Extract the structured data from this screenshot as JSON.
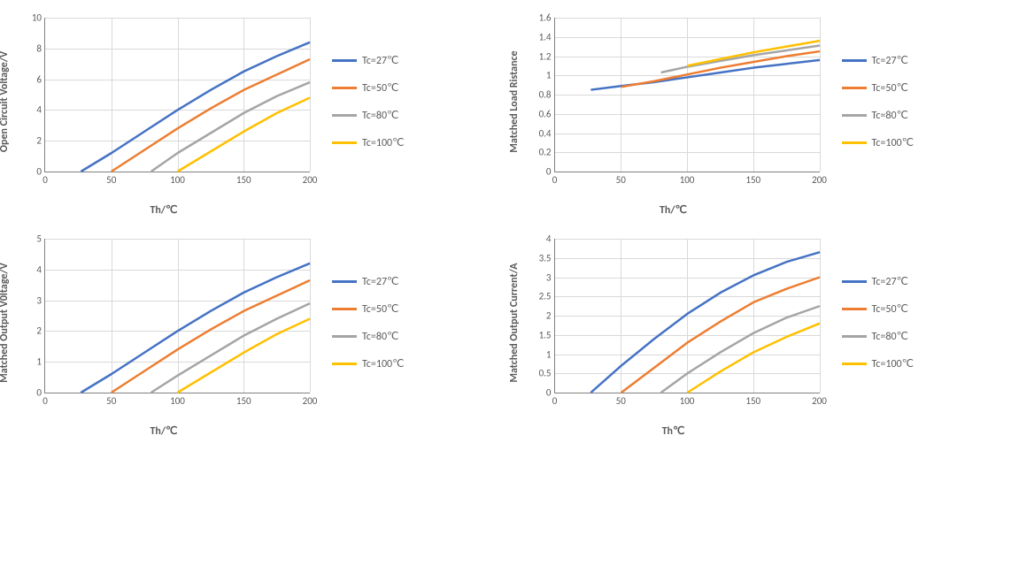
{
  "colors": {
    "series": [
      "#4472c4",
      "#ed7d31",
      "#a5a5a5",
      "#ffc000"
    ],
    "grid": "#d9d9d9",
    "axis": "#808080",
    "text": "#595959",
    "background": "#ffffff"
  },
  "legend_labels": [
    "Tc=27℃",
    "Tc=50℃",
    "Tc=80℃",
    "Tc=100℃"
  ],
  "line_width": 2.5,
  "axis_fontsize": 11,
  "label_fontsize": 12,
  "label_fontweight": "bold",
  "charts": [
    {
      "id": "open-circuit-voltage",
      "ylabel": "Open Circuit Voltage/V",
      "xlabel": "Th/℃",
      "xlim": [
        0,
        200
      ],
      "xtick_step": 50,
      "ylim": [
        0,
        10
      ],
      "ytick_step": 2,
      "series": [
        {
          "color_idx": 0,
          "points": [
            [
              27,
              0
            ],
            [
              50,
              1.2
            ],
            [
              75,
              2.6
            ],
            [
              100,
              4.0
            ],
            [
              125,
              5.3
            ],
            [
              150,
              6.5
            ],
            [
              175,
              7.5
            ],
            [
              200,
              8.4
            ]
          ]
        },
        {
          "color_idx": 1,
          "points": [
            [
              50,
              0
            ],
            [
              75,
              1.4
            ],
            [
              100,
              2.8
            ],
            [
              125,
              4.1
            ],
            [
              150,
              5.3
            ],
            [
              175,
              6.3
            ],
            [
              200,
              7.3
            ]
          ]
        },
        {
          "color_idx": 2,
          "points": [
            [
              80,
              0
            ],
            [
              100,
              1.2
            ],
            [
              125,
              2.5
            ],
            [
              150,
              3.8
            ],
            [
              175,
              4.9
            ],
            [
              200,
              5.8
            ]
          ]
        },
        {
          "color_idx": 3,
          "points": [
            [
              100,
              0
            ],
            [
              125,
              1.3
            ],
            [
              150,
              2.6
            ],
            [
              175,
              3.8
            ],
            [
              200,
              4.8
            ]
          ]
        }
      ]
    },
    {
      "id": "matched-load-resistance",
      "ylabel": "Matched Load Ristance",
      "xlabel": "Th/℃",
      "xlim": [
        0,
        200
      ],
      "xtick_step": 50,
      "ylim": [
        0,
        1.6
      ],
      "ytick_step": 0.2,
      "series": [
        {
          "color_idx": 0,
          "points": [
            [
              27,
              0.85
            ],
            [
              50,
              0.89
            ],
            [
              75,
              0.93
            ],
            [
              100,
              0.98
            ],
            [
              125,
              1.03
            ],
            [
              150,
              1.08
            ],
            [
              175,
              1.12
            ],
            [
              200,
              1.16
            ]
          ]
        },
        {
          "color_idx": 1,
          "points": [
            [
              50,
              0.88
            ],
            [
              75,
              0.94
            ],
            [
              100,
              1.01
            ],
            [
              125,
              1.08
            ],
            [
              150,
              1.14
            ],
            [
              175,
              1.2
            ],
            [
              200,
              1.25
            ]
          ]
        },
        {
          "color_idx": 2,
          "points": [
            [
              80,
              1.03
            ],
            [
              100,
              1.09
            ],
            [
              125,
              1.15
            ],
            [
              150,
              1.21
            ],
            [
              175,
              1.26
            ],
            [
              200,
              1.31
            ]
          ]
        },
        {
          "color_idx": 3,
          "points": [
            [
              100,
              1.1
            ],
            [
              125,
              1.17
            ],
            [
              150,
              1.24
            ],
            [
              175,
              1.3
            ],
            [
              200,
              1.36
            ]
          ]
        }
      ]
    },
    {
      "id": "matched-output-voltage",
      "ylabel": "Matched Output V0ltage/V",
      "xlabel": "Th/℃",
      "xlim": [
        0,
        200
      ],
      "xtick_step": 50,
      "ylim": [
        0,
        5
      ],
      "ytick_step": 1,
      "series": [
        {
          "color_idx": 0,
          "points": [
            [
              27,
              0
            ],
            [
              50,
              0.6
            ],
            [
              75,
              1.3
            ],
            [
              100,
              2.0
            ],
            [
              125,
              2.65
            ],
            [
              150,
              3.25
            ],
            [
              175,
              3.75
            ],
            [
              200,
              4.2
            ]
          ]
        },
        {
          "color_idx": 1,
          "points": [
            [
              50,
              0
            ],
            [
              75,
              0.7
            ],
            [
              100,
              1.4
            ],
            [
              125,
              2.05
            ],
            [
              150,
              2.65
            ],
            [
              175,
              3.15
            ],
            [
              200,
              3.65
            ]
          ]
        },
        {
          "color_idx": 2,
          "points": [
            [
              80,
              0
            ],
            [
              100,
              0.55
            ],
            [
              125,
              1.2
            ],
            [
              150,
              1.85
            ],
            [
              175,
              2.4
            ],
            [
              200,
              2.9
            ]
          ]
        },
        {
          "color_idx": 3,
          "points": [
            [
              100,
              0
            ],
            [
              125,
              0.65
            ],
            [
              150,
              1.3
            ],
            [
              175,
              1.9
            ],
            [
              200,
              2.4
            ]
          ]
        }
      ]
    },
    {
      "id": "matched-output-current",
      "ylabel": "Matched Output Current/A",
      "xlabel": "Th℃",
      "xlim": [
        0,
        200
      ],
      "xtick_step": 50,
      "ylim": [
        0,
        4
      ],
      "ytick_step": 0.5,
      "series": [
        {
          "color_idx": 0,
          "points": [
            [
              27,
              0
            ],
            [
              50,
              0.7
            ],
            [
              75,
              1.4
            ],
            [
              100,
              2.05
            ],
            [
              125,
              2.6
            ],
            [
              150,
              3.05
            ],
            [
              175,
              3.4
            ],
            [
              200,
              3.65
            ]
          ]
        },
        {
          "color_idx": 1,
          "points": [
            [
              50,
              0
            ],
            [
              75,
              0.65
            ],
            [
              100,
              1.3
            ],
            [
              125,
              1.85
            ],
            [
              150,
              2.35
            ],
            [
              175,
              2.7
            ],
            [
              200,
              3.0
            ]
          ]
        },
        {
          "color_idx": 2,
          "points": [
            [
              80,
              0
            ],
            [
              100,
              0.5
            ],
            [
              125,
              1.05
            ],
            [
              150,
              1.55
            ],
            [
              175,
              1.95
            ],
            [
              200,
              2.25
            ]
          ]
        },
        {
          "color_idx": 3,
          "points": [
            [
              100,
              0
            ],
            [
              125,
              0.55
            ],
            [
              150,
              1.05
            ],
            [
              175,
              1.45
            ],
            [
              200,
              1.8
            ]
          ]
        }
      ]
    }
  ]
}
